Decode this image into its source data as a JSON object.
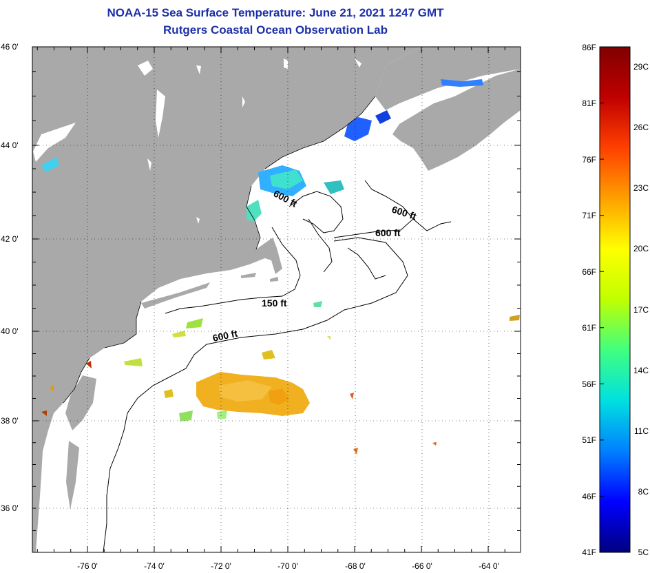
{
  "header": {
    "title": "NOAA-15 Sea Surface Temperature:  June 21, 2021 1247 GMT",
    "subtitle": "Rutgers Coastal Ocean Observation Lab"
  },
  "axes": {
    "lat_labels": [
      "46 0'",
      "44 0'",
      "42 0'",
      "40 0'",
      "38 0'",
      "36 0'"
    ],
    "lon_labels": [
      "-76 0'",
      "-74 0'",
      "-72 0'",
      "-70 0'",
      "-68 0'",
      "-66 0'",
      "-64 0'"
    ]
  },
  "contours": [
    "600 ft",
    "600 ft",
    "600 ft",
    "150 ft",
    "600 ft"
  ],
  "colorbar": {
    "fahrenheit": [
      "86F",
      "81F",
      "76F",
      "71F",
      "66F",
      "61F",
      "56F",
      "51F",
      "46F",
      "41F"
    ],
    "celsius": [
      "29C",
      "26C",
      "23C",
      "20C",
      "17C",
      "14C",
      "11C",
      "8C",
      "5C"
    ],
    "colors": [
      "#000080",
      "#0000ff",
      "#0080ff",
      "#00e0e0",
      "#40ff80",
      "#c0ff00",
      "#ffff00",
      "#ffa000",
      "#ff4000",
      "#c00000",
      "#800000"
    ]
  },
  "colors": {
    "land": "#a9a9a9",
    "ocean": "#ffffff",
    "title": "#1c2fa8"
  }
}
